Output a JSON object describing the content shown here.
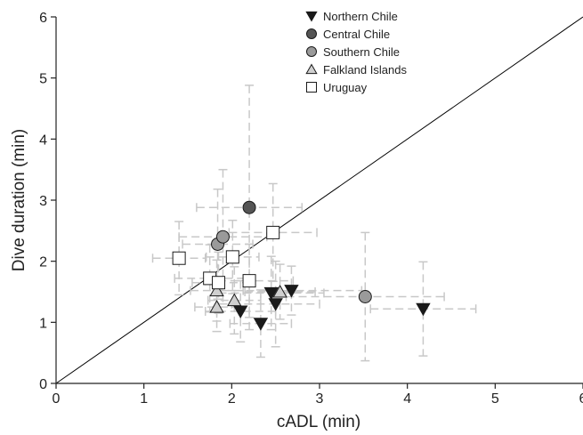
{
  "chart_data": {
    "type": "scatter",
    "xlabel": "cADL (min)",
    "ylabel": "Dive duration (min)",
    "xlim": [
      0,
      6
    ],
    "ylim": [
      0,
      6
    ],
    "x_ticks": [
      "0",
      "1",
      "2",
      "3",
      "4",
      "5",
      "6"
    ],
    "y_ticks": [
      "0",
      "1",
      "2",
      "3",
      "4",
      "5",
      "6"
    ],
    "reference_line": {
      "from": [
        0,
        0
      ],
      "to": [
        6,
        6
      ],
      "color": "#000000"
    },
    "error_bar_color": "#c8c8c8",
    "legend_placement": "top-center",
    "series": [
      {
        "name": "Northern Chile",
        "marker": "triangle-down",
        "color": "#1a1a1a",
        "points": [
          {
            "x": 2.1,
            "y": 1.18,
            "xerr": 0.4,
            "yerr": 0.5
          },
          {
            "x": 2.33,
            "y": 0.98,
            "xerr": 0.35,
            "yerr": 0.55
          },
          {
            "x": 2.45,
            "y": 1.48,
            "xerr": 0.6,
            "yerr": 0.6
          },
          {
            "x": 2.5,
            "y": 1.3,
            "xerr": 0.5,
            "yerr": 0.7
          },
          {
            "x": 2.68,
            "y": 1.52,
            "xerr": 0.8,
            "yerr": 0.4
          },
          {
            "x": 4.18,
            "y": 1.22,
            "xerr": 0.6,
            "yerr": 0.77
          }
        ]
      },
      {
        "name": "Central Chile",
        "marker": "circle",
        "color": "#555555",
        "points": [
          {
            "x": 2.2,
            "y": 2.88,
            "xerr": 0.6,
            "yerr": 2.0
          }
        ]
      },
      {
        "name": "Southern Chile",
        "marker": "circle",
        "color": "#9a9a9a",
        "points": [
          {
            "x": 1.84,
            "y": 2.28,
            "xerr": 0.4,
            "yerr": 0.9
          },
          {
            "x": 1.9,
            "y": 2.4,
            "xerr": 0.5,
            "yerr": 1.1
          },
          {
            "x": 3.52,
            "y": 1.42,
            "xerr": 0.9,
            "yerr": 1.05
          }
        ]
      },
      {
        "name": "Falkland Islands",
        "marker": "triangle-up",
        "color": "#cfcfcf",
        "points": [
          {
            "x": 1.83,
            "y": 1.52,
            "xerr": 0.3,
            "yerr": 0.5
          },
          {
            "x": 1.83,
            "y": 1.25,
            "xerr": 0.25,
            "yerr": 0.4
          },
          {
            "x": 2.03,
            "y": 1.36,
            "xerr": 0.3,
            "yerr": 0.55
          },
          {
            "x": 2.55,
            "y": 1.5,
            "xerr": 0.4,
            "yerr": 0.45
          }
        ]
      },
      {
        "name": "Uruguay",
        "marker": "square",
        "color": "#ffffff",
        "points": [
          {
            "x": 1.4,
            "y": 2.05,
            "xerr": 0.3,
            "yerr": 0.6
          },
          {
            "x": 1.75,
            "y": 1.72,
            "xerr": 0.4,
            "yerr": 0.55
          },
          {
            "x": 1.85,
            "y": 1.65,
            "xerr": 0.3,
            "yerr": 0.5
          },
          {
            "x": 2.01,
            "y": 2.07,
            "xerr": 0.3,
            "yerr": 0.6
          },
          {
            "x": 2.2,
            "y": 1.68,
            "xerr": 0.5,
            "yerr": 0.6
          },
          {
            "x": 2.47,
            "y": 2.47,
            "xerr": 0.5,
            "yerr": 0.8
          }
        ]
      }
    ]
  }
}
